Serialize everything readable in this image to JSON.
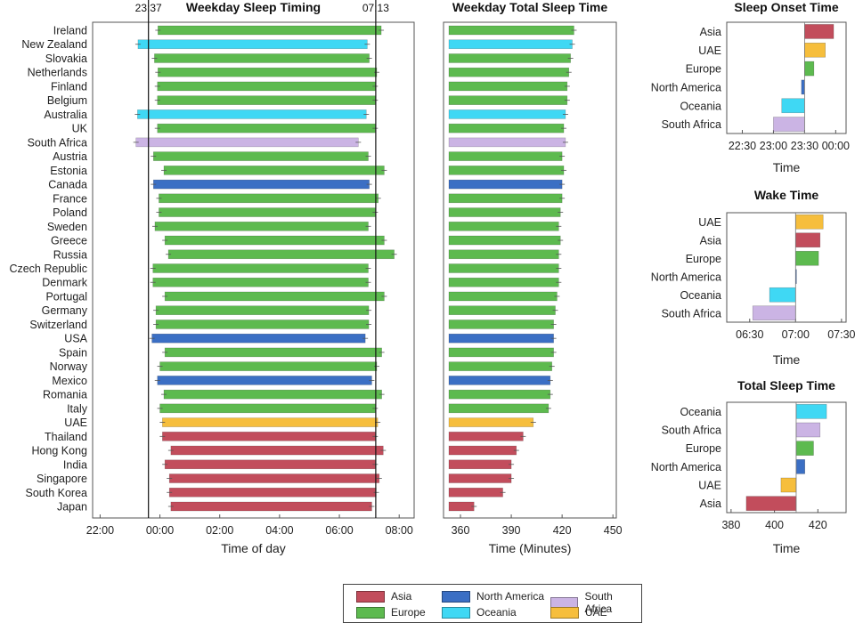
{
  "chart_data": [
    {
      "id": "timing",
      "type": "bar",
      "title": "Weekday Sleep Timing",
      "xlabel": "Time of day",
      "x_ticks": [
        "22:00",
        "00:00",
        "02:00",
        "04:00",
        "06:00",
        "08:00"
      ],
      "xlim": [
        "21:45",
        "08:30"
      ],
      "reference_lines": [
        "23:37",
        "07:13"
      ],
      "grid": false,
      "rows": [
        {
          "country": "Ireland",
          "region": "Europe",
          "start": "23:56",
          "end": "07:24"
        },
        {
          "country": "New Zealand",
          "region": "Oceania",
          "start": "23:16",
          "end": "06:56"
        },
        {
          "country": "Slovakia",
          "region": "Europe",
          "start": "23:49",
          "end": "07:00"
        },
        {
          "country": "Netherlands",
          "region": "Europe",
          "start": "23:56",
          "end": "07:15"
        },
        {
          "country": "Finland",
          "region": "Europe",
          "start": "23:55",
          "end": "07:12"
        },
        {
          "country": "Belgium",
          "region": "Europe",
          "start": "23:55",
          "end": "07:12"
        },
        {
          "country": "Australia",
          "region": "Oceania",
          "start": "23:15",
          "end": "06:54"
        },
        {
          "country": "UK",
          "region": "Europe",
          "start": "23:55",
          "end": "07:12"
        },
        {
          "country": "South Africa",
          "region": "South Africa",
          "start": "23:12",
          "end": "06:38"
        },
        {
          "country": "Austria",
          "region": "Europe",
          "start": "23:47",
          "end": "06:58"
        },
        {
          "country": "Estonia",
          "region": "Europe",
          "start": "00:08",
          "end": "07:30"
        },
        {
          "country": "Canada",
          "region": "North America",
          "start": "23:47",
          "end": "07:00"
        },
        {
          "country": "France",
          "region": "Europe",
          "start": "23:58",
          "end": "07:18"
        },
        {
          "country": "Poland",
          "region": "Europe",
          "start": "23:58",
          "end": "07:12"
        },
        {
          "country": "Sweden",
          "region": "Europe",
          "start": "23:50",
          "end": "06:58"
        },
        {
          "country": "Greece",
          "region": "Europe",
          "start": "00:10",
          "end": "07:30"
        },
        {
          "country": "Russia",
          "region": "Europe",
          "start": "00:17",
          "end": "07:50"
        },
        {
          "country": "Czech Republic",
          "region": "Europe",
          "start": "23:46",
          "end": "06:58"
        },
        {
          "country": "Denmark",
          "region": "Europe",
          "start": "23:46",
          "end": "06:58"
        },
        {
          "country": "Portugal",
          "region": "Europe",
          "start": "00:10",
          "end": "07:30"
        },
        {
          "country": "Germany",
          "region": "Europe",
          "start": "23:52",
          "end": "06:59"
        },
        {
          "country": "Switzerland",
          "region": "Europe",
          "start": "23:52",
          "end": "06:59"
        },
        {
          "country": "USA",
          "region": "North America",
          "start": "23:44",
          "end": "06:52"
        },
        {
          "country": "Spain",
          "region": "Europe",
          "start": "00:10",
          "end": "07:25"
        },
        {
          "country": "Norway",
          "region": "Europe",
          "start": "24:00",
          "end": "07:15"
        },
        {
          "country": "Mexico",
          "region": "North America",
          "start": "23:55",
          "end": "07:05"
        },
        {
          "country": "Romania",
          "region": "Europe",
          "start": "00:08",
          "end": "07:25"
        },
        {
          "country": "Italy",
          "region": "Europe",
          "start": "00:00",
          "end": "07:12"
        },
        {
          "country": "UAE",
          "region": "UAE",
          "start": "00:05",
          "end": "07:17"
        },
        {
          "country": "Thailand",
          "region": "Asia",
          "start": "00:05",
          "end": "07:12"
        },
        {
          "country": "Hong Kong",
          "region": "Asia",
          "start": "00:22",
          "end": "07:28"
        },
        {
          "country": "India",
          "region": "Asia",
          "start": "00:10",
          "end": "07:12"
        },
        {
          "country": "Singapore",
          "region": "Asia",
          "start": "00:19",
          "end": "07:20"
        },
        {
          "country": "South Korea",
          "region": "Asia",
          "start": "00:19",
          "end": "07:14"
        },
        {
          "country": "Japan",
          "region": "Asia",
          "start": "00:22",
          "end": "07:05"
        }
      ]
    },
    {
      "id": "total",
      "type": "bar",
      "title": "Weekday Total Sleep Time",
      "xlabel": "Time (Minutes)",
      "x_ticks": [
        360,
        390,
        420,
        450
      ],
      "xlim": [
        350,
        452
      ],
      "grid": false,
      "values": [
        427,
        426,
        425,
        424,
        423,
        423,
        422,
        421,
        422,
        420,
        421,
        420,
        420,
        419,
        418,
        419,
        418,
        418,
        418,
        417,
        416,
        415,
        415,
        415,
        414,
        413,
        413,
        412,
        403,
        397,
        393,
        390,
        390,
        385,
        368
      ]
    },
    {
      "id": "onset",
      "type": "bar",
      "title": "Sleep Onset Time",
      "xlabel": "Time",
      "x_ticks": [
        "22:30",
        "23:00",
        "23:30",
        "00:00"
      ],
      "xlim": [
        "22:15",
        "00:10"
      ],
      "baseline": "23:30",
      "grid": false,
      "categories": [
        "Asia",
        "UAE",
        "Europe",
        "North America",
        "Oceania",
        "South Africa"
      ],
      "values": [
        "23:58",
        "23:50",
        "23:39",
        "23:27",
        "23:08",
        "23:00"
      ]
    },
    {
      "id": "wake",
      "type": "bar",
      "title": "Wake Time",
      "xlabel": "Time",
      "x_ticks": [
        "06:30",
        "07:00",
        "07:30"
      ],
      "xlim": [
        "06:15",
        "07:33"
      ],
      "baseline": "07:00",
      "grid": false,
      "categories": [
        "UAE",
        "Asia",
        "Europe",
        "North America",
        "Oceania",
        "South Africa"
      ],
      "values": [
        "07:18",
        "07:16",
        "07:15",
        "07:00",
        "06:43",
        "06:32"
      ]
    },
    {
      "id": "tst",
      "type": "bar",
      "title": "Total Sleep Time",
      "xlabel": "Time",
      "x_ticks": [
        380,
        400,
        420
      ],
      "xlim": [
        378,
        433
      ],
      "baseline": 410,
      "grid": false,
      "categories": [
        "Oceania",
        "South Africa",
        "Europe",
        "North America",
        "UAE",
        "Asia"
      ],
      "values": [
        424,
        421,
        418,
        414,
        403,
        387
      ]
    }
  ],
  "legend": {
    "placement": "bottom-center",
    "items": [
      {
        "label": "Asia",
        "color": "#c24d5c"
      },
      {
        "label": "North America",
        "color": "#3b6fc4"
      },
      {
        "label": "South Africa",
        "color": "#cbb4e4"
      },
      {
        "label": "Europe",
        "color": "#5dba4f"
      },
      {
        "label": "Oceania",
        "color": "#3fd8f4"
      },
      {
        "label": "UAE",
        "color": "#f6be3c"
      }
    ]
  }
}
